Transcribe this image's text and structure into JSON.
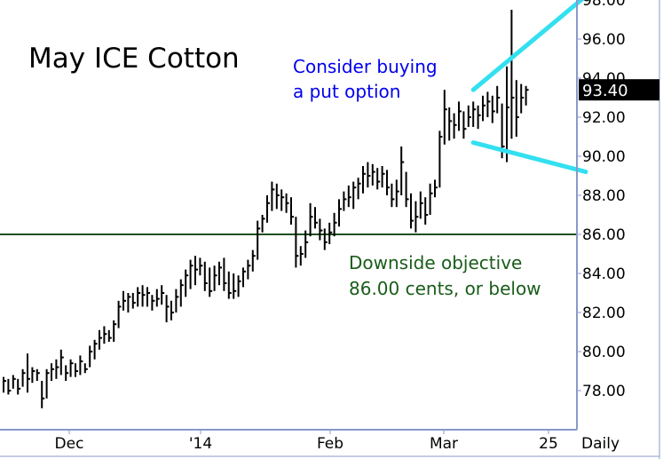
{
  "chart_data": {
    "type": "bar",
    "title": "May ICE Cotton",
    "ylim": [
      76.0,
      98.0
    ],
    "y_ticks": [
      "78.00",
      "80.00",
      "82.00",
      "84.00",
      "86.00",
      "88.00",
      "90.00",
      "92.00",
      "94.00",
      "96.00",
      "98.00"
    ],
    "x_ticks": [
      "Dec",
      "'14",
      "Feb",
      "Mar",
      "25"
    ],
    "x_label_right": "Daily",
    "last_price": "93.40",
    "last_price_value": 93.4,
    "support_level": 86.0,
    "annotations": {
      "put": [
        "Consider buying",
        "a put option"
      ],
      "objective": [
        "Downside objective",
        "86.00 cents, or below"
      ]
    },
    "colors": {
      "bars": "#000000",
      "support_line": "#1f4f1f",
      "wedge": "#33e0f0",
      "put_text": "#0000ee",
      "objective_text": "#1a5c1a",
      "axis": "#8899cc",
      "price_box": "#000000"
    },
    "bars": [
      [
        78.7,
        77.9,
        78.5
      ],
      [
        78.6,
        77.8,
        78.0
      ],
      [
        78.8,
        78.1,
        78.6
      ],
      [
        78.6,
        77.8,
        78.1
      ],
      [
        79.1,
        78.2,
        78.9
      ],
      [
        79.9,
        77.9,
        78.6
      ],
      [
        79.2,
        78.4,
        79.0
      ],
      [
        79.1,
        78.5,
        78.9
      ],
      [
        78.5,
        77.1,
        77.6
      ],
      [
        79.1,
        77.6,
        78.9
      ],
      [
        79.4,
        78.5,
        79.1
      ],
      [
        79.6,
        78.6,
        79.2
      ],
      [
        80.1,
        78.8,
        79.7
      ],
      [
        79.3,
        78.5,
        78.9
      ],
      [
        79.6,
        78.7,
        79.4
      ],
      [
        79.4,
        78.7,
        79.0
      ],
      [
        79.8,
        78.8,
        79.5
      ],
      [
        79.4,
        78.9,
        79.1
      ],
      [
        80.3,
        79.2,
        80.0
      ],
      [
        80.6,
        79.6,
        80.4
      ],
      [
        81.1,
        80.1,
        80.7
      ],
      [
        81.3,
        80.4,
        80.9
      ],
      [
        81.1,
        80.5,
        80.7
      ],
      [
        81.6,
        80.5,
        81.4
      ],
      [
        82.6,
        81.2,
        82.3
      ],
      [
        83.1,
        82.1,
        82.6
      ],
      [
        83.0,
        82.0,
        82.8
      ],
      [
        83.0,
        82.2,
        82.5
      ],
      [
        83.3,
        82.3,
        83.0
      ],
      [
        83.4,
        82.3,
        82.9
      ],
      [
        83.3,
        82.3,
        83.0
      ],
      [
        82.9,
        82.1,
        82.6
      ],
      [
        83.2,
        82.3,
        82.7
      ],
      [
        83.4,
        82.4,
        83.0
      ],
      [
        82.9,
        81.5,
        82.3
      ],
      [
        82.6,
        81.6,
        82.0
      ],
      [
        83.2,
        82.0,
        82.8
      ],
      [
        83.7,
        82.3,
        83.4
      ],
      [
        84.2,
        82.8,
        83.9
      ],
      [
        84.7,
        83.2,
        84.4
      ],
      [
        84.9,
        83.4,
        84.2
      ],
      [
        84.8,
        83.9,
        84.4
      ],
      [
        84.6,
        83.1,
        83.5
      ],
      [
        84.3,
        82.8,
        83.1
      ],
      [
        84.4,
        83.1,
        83.9
      ],
      [
        84.6,
        83.4,
        84.3
      ],
      [
        84.8,
        83.1,
        83.5
      ],
      [
        84.1,
        82.7,
        83.0
      ],
      [
        84.0,
        82.7,
        83.1
      ],
      [
        83.9,
        82.8,
        83.6
      ],
      [
        84.3,
        83.3,
        84.1
      ],
      [
        84.7,
        83.7,
        84.4
      ],
      [
        85.2,
        84.1,
        84.9
      ],
      [
        86.7,
        84.7,
        86.3
      ],
      [
        87.0,
        86.1,
        86.8
      ],
      [
        88.0,
        86.6,
        87.6
      ],
      [
        88.7,
        87.2,
        88.3
      ],
      [
        88.6,
        87.3,
        88.0
      ],
      [
        88.3,
        87.2,
        87.9
      ],
      [
        88.1,
        87.1,
        87.6
      ],
      [
        87.9,
        86.5,
        86.9
      ],
      [
        86.9,
        84.3,
        84.9
      ],
      [
        85.4,
        84.4,
        85.0
      ],
      [
        86.2,
        84.8,
        85.6
      ],
      [
        87.6,
        85.9,
        86.9
      ],
      [
        87.4,
        86.3,
        86.6
      ],
      [
        86.8,
        85.7,
        86.2
      ],
      [
        86.3,
        85.2,
        85.6
      ],
      [
        86.6,
        85.5,
        86.1
      ],
      [
        87.1,
        85.9,
        86.6
      ],
      [
        87.8,
        86.4,
        87.3
      ],
      [
        88.2,
        87.2,
        87.8
      ],
      [
        88.5,
        87.4,
        87.9
      ],
      [
        88.7,
        87.3,
        88.4
      ],
      [
        88.9,
        87.8,
        88.6
      ],
      [
        89.5,
        88.1,
        89.1
      ],
      [
        89.7,
        88.4,
        89.0
      ],
      [
        89.6,
        88.5,
        89.2
      ],
      [
        89.4,
        88.3,
        88.7
      ],
      [
        89.5,
        88.4,
        89.1
      ],
      [
        89.3,
        88.0,
        88.4
      ],
      [
        88.6,
        87.4,
        87.8
      ],
      [
        88.8,
        87.4,
        88.2
      ],
      [
        90.5,
        88.0,
        89.7
      ],
      [
        89.2,
        87.4,
        87.8
      ],
      [
        88.1,
        86.3,
        86.7
      ],
      [
        87.7,
        86.1,
        86.9
      ],
      [
        88.2,
        86.8,
        87.6
      ],
      [
        87.9,
        86.5,
        87.0
      ],
      [
        88.6,
        87.0,
        88.1
      ],
      [
        88.8,
        87.9,
        88.4
      ],
      [
        91.3,
        88.4,
        91.0
      ],
      [
        93.4,
        90.6,
        92.4
      ],
      [
        92.5,
        90.8,
        91.8
      ],
      [
        92.2,
        90.9,
        91.6
      ],
      [
        92.8,
        91.3,
        92.3
      ],
      [
        92.3,
        90.9,
        91.4
      ],
      [
        92.6,
        91.5,
        92.0
      ],
      [
        92.8,
        91.5,
        92.4
      ],
      [
        92.6,
        91.4,
        92.1
      ],
      [
        93.1,
        91.8,
        92.6
      ],
      [
        93.3,
        92.0,
        92.8
      ],
      [
        93.1,
        91.7,
        92.3
      ],
      [
        93.6,
        92.2,
        93.0
      ],
      [
        92.7,
        89.9,
        90.5
      ],
      [
        94.6,
        89.7,
        92.5
      ],
      [
        97.5,
        90.9,
        93.0
      ],
      [
        93.9,
        91.0,
        92.0
      ],
      [
        93.7,
        92.2,
        93.0
      ],
      [
        93.6,
        92.6,
        93.4
      ]
    ],
    "wedge_upper": [
      [
        98,
        93.4
      ],
      [
        115,
        98.2
      ]
    ],
    "wedge_lower": [
      [
        98,
        90.7
      ],
      [
        115,
        89.2
      ]
    ]
  }
}
